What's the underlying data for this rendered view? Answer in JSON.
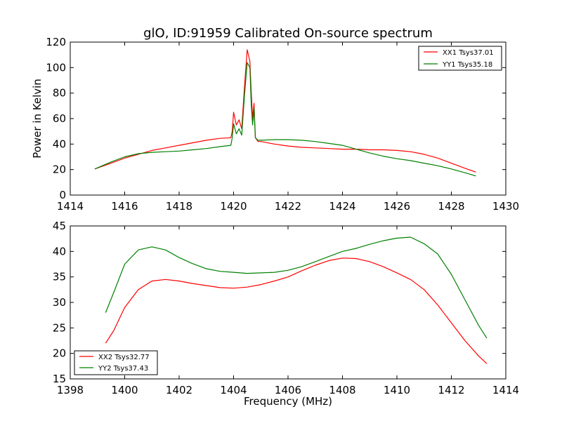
{
  "colors": {
    "red": "#ff0000",
    "green": "#008000",
    "axes": "#000000"
  },
  "xlabel": "Frequency (MHz)",
  "chart_data": [
    {
      "type": "line",
      "title": "glO, ID:91959 Calibrated On-source spectrum",
      "xlabel": "",
      "ylabel": "Power in Kelvin",
      "xlim": [
        1414,
        1430
      ],
      "ylim": [
        0,
        120
      ],
      "xticks": [
        "1414",
        "1416",
        "1418",
        "1420",
        "1422",
        "1424",
        "1426",
        "1428",
        "1430"
      ],
      "yticks": [
        "0",
        "20",
        "40",
        "60",
        "80",
        "100",
        "120"
      ],
      "legend_loc": "upper right",
      "grid": false,
      "series": [
        {
          "name": "XX1 Tsys37.01",
          "color": "#ff0000",
          "x": [
            1414.9,
            1415.5,
            1416.0,
            1416.5,
            1417.0,
            1417.5,
            1418.0,
            1418.5,
            1419.0,
            1419.5,
            1419.9,
            1419.95,
            1420.0,
            1420.1,
            1420.2,
            1420.3,
            1420.4,
            1420.5,
            1420.6,
            1420.65,
            1420.7,
            1420.75,
            1420.8,
            1420.9,
            1421.0,
            1421.5,
            1422.0,
            1422.5,
            1423.0,
            1423.5,
            1424.0,
            1424.5,
            1425.0,
            1425.5,
            1426.0,
            1426.5,
            1427.0,
            1427.5,
            1428.0,
            1428.5,
            1428.9
          ],
          "y": [
            20.5,
            25,
            29,
            32,
            35,
            37,
            39,
            41,
            43,
            44.5,
            45,
            50,
            65,
            55,
            59,
            52,
            85,
            114,
            105,
            80,
            60,
            72,
            45,
            42,
            42,
            40,
            38.5,
            37.5,
            37,
            36.5,
            36,
            36,
            35.5,
            35.5,
            35,
            34,
            32,
            29,
            25,
            21,
            18
          ]
        },
        {
          "name": "YY1 Tsys35.18",
          "color": "#008000",
          "x": [
            1414.9,
            1415.5,
            1416.0,
            1416.5,
            1417.0,
            1417.5,
            1418.0,
            1418.5,
            1419.0,
            1419.5,
            1419.9,
            1419.95,
            1420.0,
            1420.1,
            1420.2,
            1420.3,
            1420.4,
            1420.5,
            1420.6,
            1420.65,
            1420.7,
            1420.75,
            1420.8,
            1420.9,
            1421.0,
            1421.5,
            1422.0,
            1422.5,
            1423.0,
            1423.5,
            1424.0,
            1424.5,
            1425.0,
            1425.5,
            1426.0,
            1426.5,
            1427.0,
            1427.5,
            1428.0,
            1428.5,
            1428.9
          ],
          "y": [
            20.5,
            26,
            30,
            32.5,
            33.5,
            34,
            34.5,
            35.5,
            36.5,
            38,
            39,
            45,
            56,
            48,
            52,
            47,
            78,
            104,
            100,
            70,
            55,
            68,
            45,
            43,
            43,
            43.5,
            43.5,
            43,
            42,
            40.5,
            39,
            36,
            33,
            30.5,
            28.5,
            27,
            25,
            23,
            20.5,
            17.5,
            15
          ]
        }
      ]
    },
    {
      "type": "line",
      "title": "",
      "xlabel": "Frequency (MHz)",
      "ylabel": "",
      "xlim": [
        1398,
        1414
      ],
      "ylim": [
        15,
        45
      ],
      "xticks": [
        "1398",
        "1400",
        "1402",
        "1404",
        "1406",
        "1408",
        "1410",
        "1412",
        "1414"
      ],
      "yticks": [
        "15",
        "20",
        "25",
        "30",
        "35",
        "40",
        "45"
      ],
      "legend_loc": "lower left",
      "grid": false,
      "series": [
        {
          "name": "XX2 Tsys32.77",
          "color": "#ff0000",
          "x": [
            1399.3,
            1399.6,
            1400.0,
            1400.5,
            1401.0,
            1401.5,
            1402.0,
            1402.5,
            1403.0,
            1403.5,
            1404.0,
            1404.5,
            1405.0,
            1405.5,
            1406.0,
            1406.5,
            1407.0,
            1407.5,
            1408.0,
            1408.5,
            1409.0,
            1409.5,
            1410.0,
            1410.5,
            1411.0,
            1411.5,
            1412.0,
            1412.5,
            1413.0,
            1413.3
          ],
          "y": [
            22,
            24.5,
            29,
            32.5,
            34.2,
            34.5,
            34.2,
            33.7,
            33.3,
            32.9,
            32.8,
            33,
            33.5,
            34.2,
            35,
            36.2,
            37.3,
            38.2,
            38.7,
            38.6,
            38,
            37,
            35.8,
            34.5,
            32.5,
            29.5,
            26,
            22.5,
            19.5,
            18
          ]
        },
        {
          "name": "YY2 Tsys37.43",
          "color": "#008000",
          "x": [
            1399.3,
            1399.6,
            1400.0,
            1400.5,
            1401.0,
            1401.5,
            1402.0,
            1402.5,
            1403.0,
            1403.5,
            1404.0,
            1404.5,
            1405.0,
            1405.5,
            1406.0,
            1406.5,
            1407.0,
            1407.5,
            1408.0,
            1408.5,
            1409.0,
            1409.5,
            1410.0,
            1410.5,
            1411.0,
            1411.5,
            1412.0,
            1412.5,
            1413.0,
            1413.3
          ],
          "y": [
            28,
            32,
            37.5,
            40.3,
            40.9,
            40.3,
            38.8,
            37.6,
            36.6,
            36.1,
            35.9,
            35.7,
            35.8,
            35.9,
            36.3,
            37,
            38,
            39,
            40,
            40.6,
            41.4,
            42.1,
            42.6,
            42.8,
            41.5,
            39.5,
            35.5,
            30.5,
            25.5,
            23
          ]
        }
      ]
    }
  ]
}
